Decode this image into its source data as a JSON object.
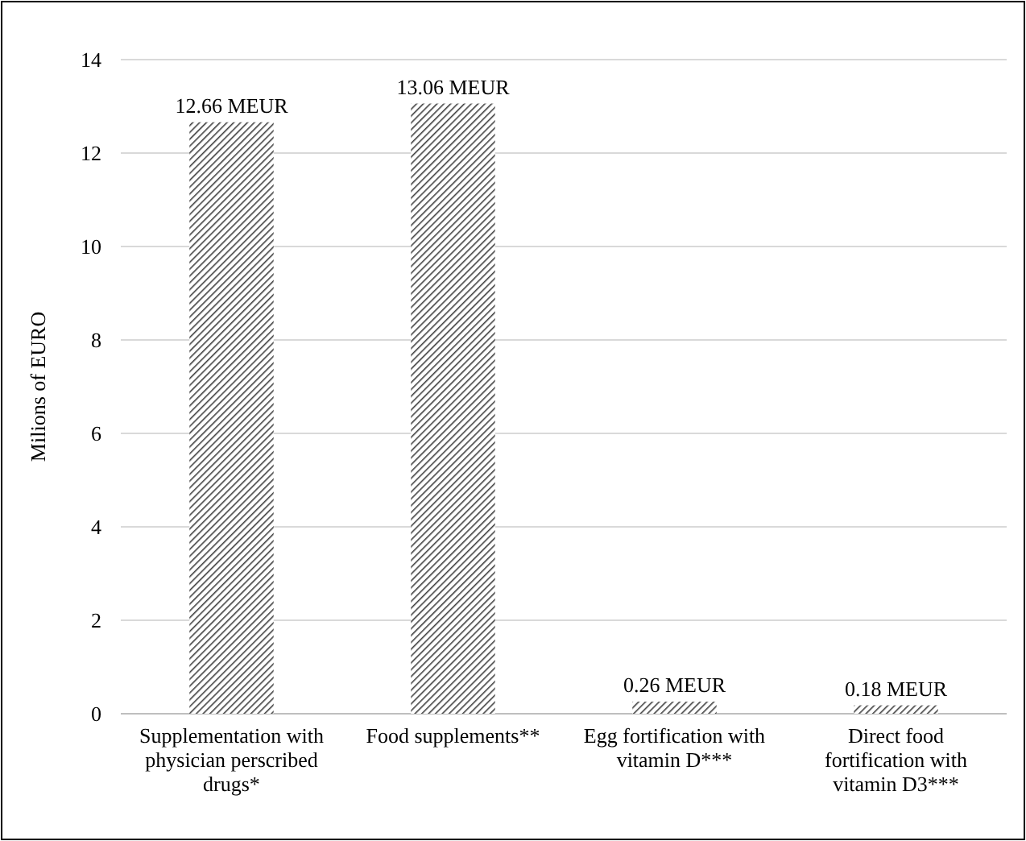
{
  "chart_data": {
    "type": "bar",
    "ylabel": "Milions of EURO",
    "categories": [
      "Supplementation with physician perscribed drugs*",
      "Food supplements**",
      "Egg fortification with vitamin D***",
      "Direct food fortification with vitamin D3***"
    ],
    "values": [
      12.66,
      13.06,
      0.26,
      0.18
    ],
    "value_labels": [
      "12.66 MEUR",
      "13.06 MEUR",
      "0.26 MEUR",
      "0.18 MEUR"
    ],
    "color": "#404040",
    "ylim": [
      0,
      14
    ],
    "yticks": [
      0,
      2,
      4,
      6,
      8,
      10,
      12,
      14
    ],
    "grid": "y"
  }
}
